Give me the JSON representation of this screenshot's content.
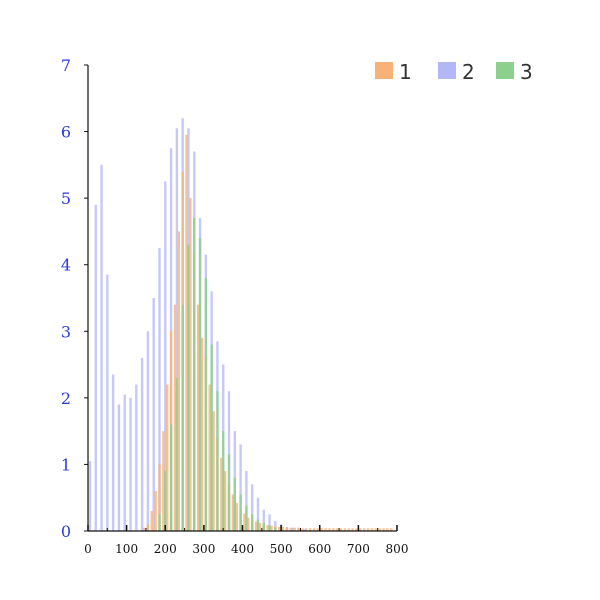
{
  "chart_data": {
    "type": "bar",
    "chart_kind": "overlaid histogram",
    "x_axis": {
      "min": 0,
      "max": 800,
      "ticks": [
        0,
        100,
        200,
        300,
        400,
        500,
        600,
        700,
        800
      ]
    },
    "y_axis": {
      "min": 0,
      "max": 7,
      "ticks": [
        0,
        1,
        2,
        3,
        4,
        5,
        6,
        7
      ]
    },
    "grid": false,
    "legend_position": "top-right",
    "bin_width": 10,
    "series": [
      {
        "name": "1",
        "color": "#f7b377",
        "bins": [
          {
            "x": 140,
            "y": 0.05
          },
          {
            "x": 150,
            "y": 0.1
          },
          {
            "x": 160,
            "y": 0.3
          },
          {
            "x": 170,
            "y": 0.6
          },
          {
            "x": 180,
            "y": 1.0
          },
          {
            "x": 190,
            "y": 1.5
          },
          {
            "x": 200,
            "y": 2.2
          },
          {
            "x": 210,
            "y": 3.0
          },
          {
            "x": 220,
            "y": 3.4
          },
          {
            "x": 230,
            "y": 4.5
          },
          {
            "x": 240,
            "y": 5.4
          },
          {
            "x": 250,
            "y": 5.95
          },
          {
            "x": 260,
            "y": 5.0
          },
          {
            "x": 270,
            "y": 4.2
          },
          {
            "x": 280,
            "y": 3.4
          },
          {
            "x": 290,
            "y": 2.9
          },
          {
            "x": 300,
            "y": 2.6
          },
          {
            "x": 310,
            "y": 2.2
          },
          {
            "x": 320,
            "y": 1.8
          },
          {
            "x": 330,
            "y": 1.4
          },
          {
            "x": 340,
            "y": 1.1
          },
          {
            "x": 350,
            "y": 0.9
          },
          {
            "x": 360,
            "y": 0.7
          },
          {
            "x": 370,
            "y": 0.55
          },
          {
            "x": 380,
            "y": 0.42
          },
          {
            "x": 390,
            "y": 0.33
          },
          {
            "x": 400,
            "y": 0.26
          },
          {
            "x": 410,
            "y": 0.2
          },
          {
            "x": 420,
            "y": 0.17
          },
          {
            "x": 430,
            "y": 0.14
          },
          {
            "x": 440,
            "y": 0.12
          },
          {
            "x": 450,
            "y": 0.1
          },
          {
            "x": 460,
            "y": 0.09
          },
          {
            "x": 470,
            "y": 0.08
          },
          {
            "x": 480,
            "y": 0.07
          },
          {
            "x": 490,
            "y": 0.06
          },
          {
            "x": 500,
            "y": 0.06
          },
          {
            "x": 510,
            "y": 0.05
          },
          {
            "x": 520,
            "y": 0.05
          },
          {
            "x": 530,
            "y": 0.05
          },
          {
            "x": 540,
            "y": 0.05
          },
          {
            "x": 550,
            "y": 0.04
          },
          {
            "x": 560,
            "y": 0.04
          },
          {
            "x": 570,
            "y": 0.04
          },
          {
            "x": 580,
            "y": 0.04
          },
          {
            "x": 590,
            "y": 0.04
          },
          {
            "x": 600,
            "y": 0.04
          },
          {
            "x": 610,
            "y": 0.04
          },
          {
            "x": 620,
            "y": 0.04
          },
          {
            "x": 630,
            "y": 0.04
          },
          {
            "x": 640,
            "y": 0.04
          },
          {
            "x": 650,
            "y": 0.04
          },
          {
            "x": 660,
            "y": 0.04
          },
          {
            "x": 670,
            "y": 0.04
          },
          {
            "x": 680,
            "y": 0.04
          },
          {
            "x": 690,
            "y": 0.04
          },
          {
            "x": 700,
            "y": 0.04
          },
          {
            "x": 710,
            "y": 0.04
          },
          {
            "x": 720,
            "y": 0.04
          },
          {
            "x": 730,
            "y": 0.04
          },
          {
            "x": 740,
            "y": 0.04
          },
          {
            "x": 750,
            "y": 0.04
          },
          {
            "x": 760,
            "y": 0.04
          },
          {
            "x": 770,
            "y": 0.04
          },
          {
            "x": 780,
            "y": 0.04
          }
        ]
      },
      {
        "name": "2",
        "color": "#b3b7f5",
        "bins": [
          {
            "x": 0,
            "y": 1.05
          },
          {
            "x": 15,
            "y": 4.9
          },
          {
            "x": 30,
            "y": 5.5
          },
          {
            "x": 45,
            "y": 3.85
          },
          {
            "x": 60,
            "y": 2.35
          },
          {
            "x": 75,
            "y": 1.9
          },
          {
            "x": 90,
            "y": 2.05
          },
          {
            "x": 105,
            "y": 2.0
          },
          {
            "x": 120,
            "y": 2.2
          },
          {
            "x": 135,
            "y": 2.6
          },
          {
            "x": 150,
            "y": 3.0
          },
          {
            "x": 165,
            "y": 3.5
          },
          {
            "x": 180,
            "y": 4.25
          },
          {
            "x": 195,
            "y": 5.25
          },
          {
            "x": 210,
            "y": 5.75
          },
          {
            "x": 225,
            "y": 6.05
          },
          {
            "x": 240,
            "y": 6.2
          },
          {
            "x": 255,
            "y": 6.05
          },
          {
            "x": 270,
            "y": 5.7
          },
          {
            "x": 285,
            "y": 4.7
          },
          {
            "x": 300,
            "y": 4.15
          },
          {
            "x": 315,
            "y": 3.6
          },
          {
            "x": 330,
            "y": 2.85
          },
          {
            "x": 345,
            "y": 2.5
          },
          {
            "x": 360,
            "y": 2.1
          },
          {
            "x": 375,
            "y": 1.5
          },
          {
            "x": 390,
            "y": 1.3
          },
          {
            "x": 405,
            "y": 0.9
          },
          {
            "x": 420,
            "y": 0.7
          },
          {
            "x": 435,
            "y": 0.5
          },
          {
            "x": 450,
            "y": 0.32
          },
          {
            "x": 465,
            "y": 0.25
          },
          {
            "x": 480,
            "y": 0.15
          },
          {
            "x": 495,
            "y": 0.1
          },
          {
            "x": 510,
            "y": 0.06
          },
          {
            "x": 525,
            "y": 0.05
          },
          {
            "x": 540,
            "y": 0.04
          },
          {
            "x": 555,
            "y": 0.03
          },
          {
            "x": 570,
            "y": 0.02
          }
        ]
      },
      {
        "name": "3",
        "color": "#8dcf8d",
        "bins": [
          {
            "x": 180,
            "y": 0.25
          },
          {
            "x": 195,
            "y": 0.9
          },
          {
            "x": 210,
            "y": 1.6
          },
          {
            "x": 225,
            "y": 2.3
          },
          {
            "x": 240,
            "y": 3.4
          },
          {
            "x": 255,
            "y": 4.3
          },
          {
            "x": 270,
            "y": 4.7
          },
          {
            "x": 285,
            "y": 4.4
          },
          {
            "x": 300,
            "y": 3.8
          },
          {
            "x": 315,
            "y": 2.8
          },
          {
            "x": 330,
            "y": 2.1
          },
          {
            "x": 345,
            "y": 1.5
          },
          {
            "x": 360,
            "y": 1.15
          },
          {
            "x": 375,
            "y": 0.8
          },
          {
            "x": 390,
            "y": 0.55
          },
          {
            "x": 405,
            "y": 0.38
          },
          {
            "x": 420,
            "y": 0.25
          },
          {
            "x": 435,
            "y": 0.17
          },
          {
            "x": 450,
            "y": 0.12
          },
          {
            "x": 465,
            "y": 0.08
          },
          {
            "x": 480,
            "y": 0.05
          }
        ]
      }
    ]
  }
}
